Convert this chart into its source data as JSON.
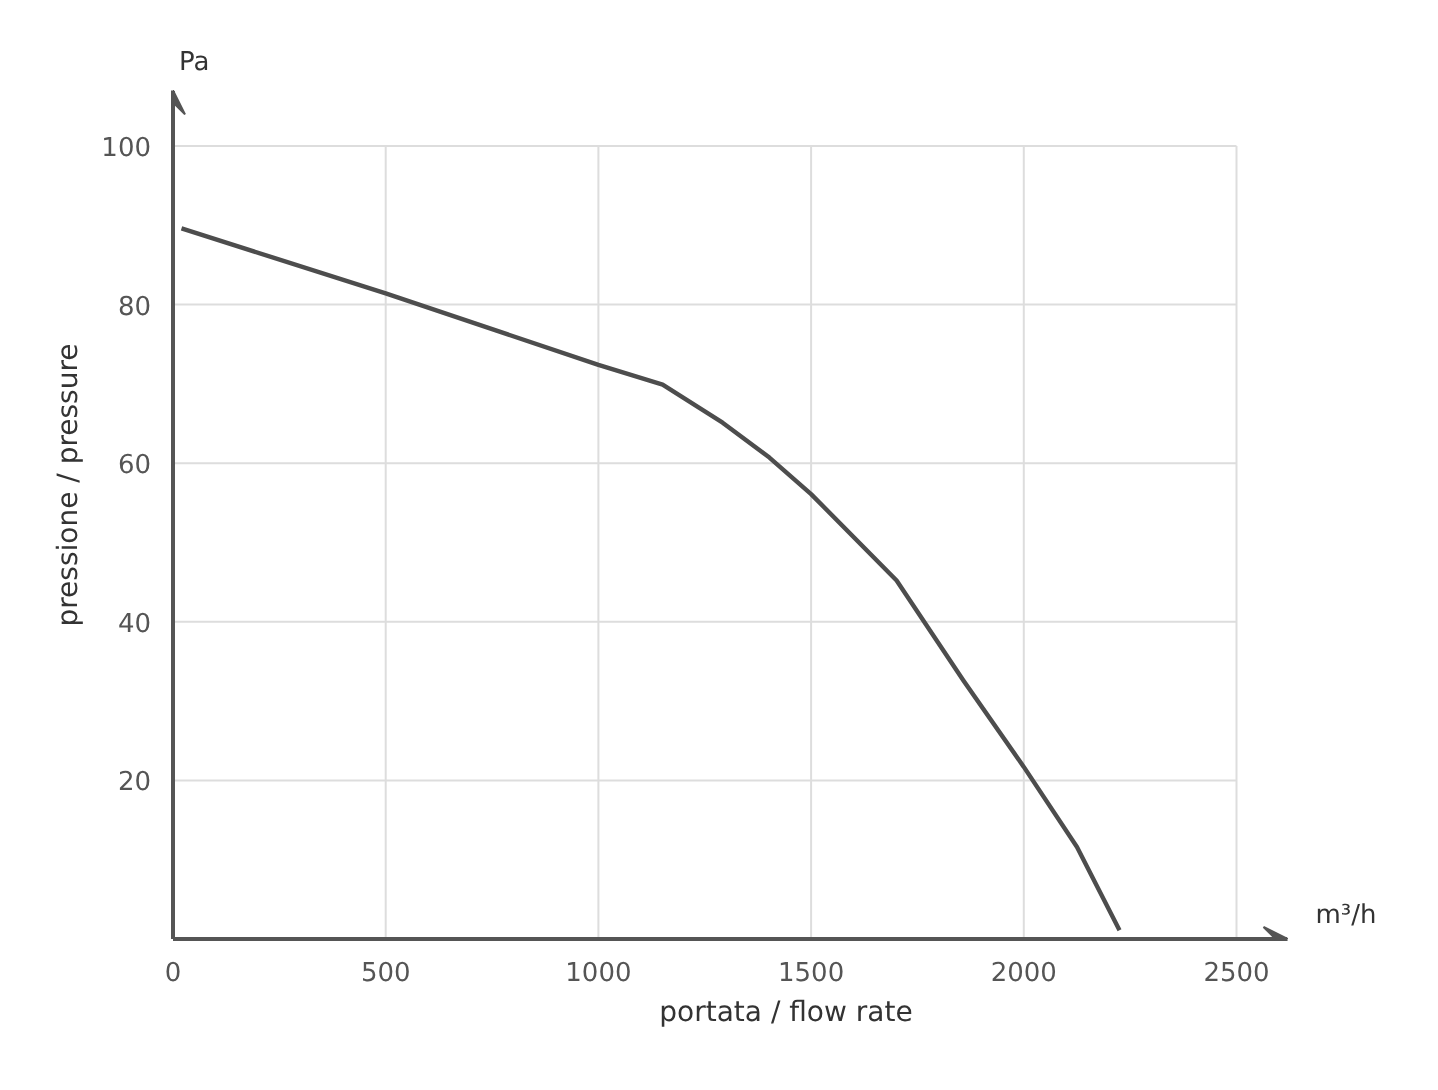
{
  "chart_data": {
    "type": "line",
    "xlabel": "portata / flow rate",
    "ylabel": "pressione / pressure",
    "annotations": [
      "Pa",
      "m³/h"
    ],
    "x": [
      20,
      500,
      1000,
      1151,
      1292,
      1402,
      1500,
      1701,
      1858,
      2000,
      2125,
      2225
    ],
    "series": [
      {
        "color": "#4d4d4d",
        "values": [
          89.6,
          81.4,
          72.4,
          69.9,
          65.1,
          60.7,
          56.1,
          45.2,
          32.6,
          21.7,
          11.6,
          1.1
        ]
      }
    ],
    "xlim": [
      0,
      2620
    ],
    "ylim": [
      0,
      107
    ],
    "xticks": [
      0,
      500,
      1000,
      1500,
      2000,
      2500
    ],
    "yticks": [
      {
        "value": 0,
        "label": null
      },
      20,
      40,
      60,
      80,
      100
    ],
    "grid": true,
    "marker": "none",
    "line_style": "solid"
  }
}
